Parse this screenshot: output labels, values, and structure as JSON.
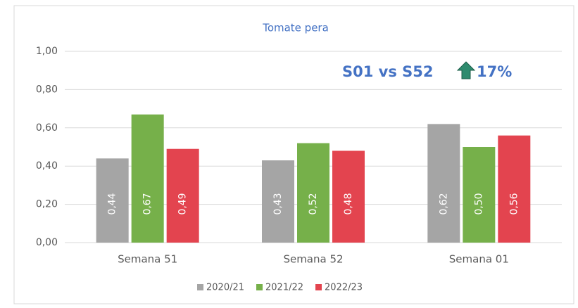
{
  "chart_data": {
    "type": "bar",
    "title": "Tomate pera",
    "categories": [
      "Semana 51",
      "Semana 52",
      "Semana 01"
    ],
    "series": [
      {
        "name": "2020/21",
        "color": "#a5a5a5",
        "values": [
          0.44,
          0.43,
          0.62
        ],
        "value_labels": [
          "0,44",
          "0,43",
          "0,62"
        ]
      },
      {
        "name": "2021/22",
        "color": "#76b04a",
        "values": [
          0.67,
          0.52,
          0.5
        ],
        "value_labels": [
          "0,67",
          "0,52",
          "0,50"
        ]
      },
      {
        "name": "2022/23",
        "color": "#e3444f",
        "values": [
          0.49,
          0.48,
          0.56
        ],
        "value_labels": [
          "0,49",
          "0,48",
          "0,56"
        ]
      }
    ],
    "ylim": [
      0,
      1
    ],
    "yticks": [
      {
        "value": 0,
        "label": "0,00"
      },
      {
        "value": 0.2,
        "label": "0,20"
      },
      {
        "value": 0.4,
        "label": "0,40"
      },
      {
        "value": 0.6,
        "label": "0,60"
      },
      {
        "value": 0.8,
        "label": "0,80"
      },
      {
        "value": 1,
        "label": "1,00"
      }
    ],
    "grid": true,
    "legend": "bottom",
    "annotations": [
      {
        "text": "S01 vs S52"
      },
      {
        "text": "17%"
      }
    ]
  }
}
